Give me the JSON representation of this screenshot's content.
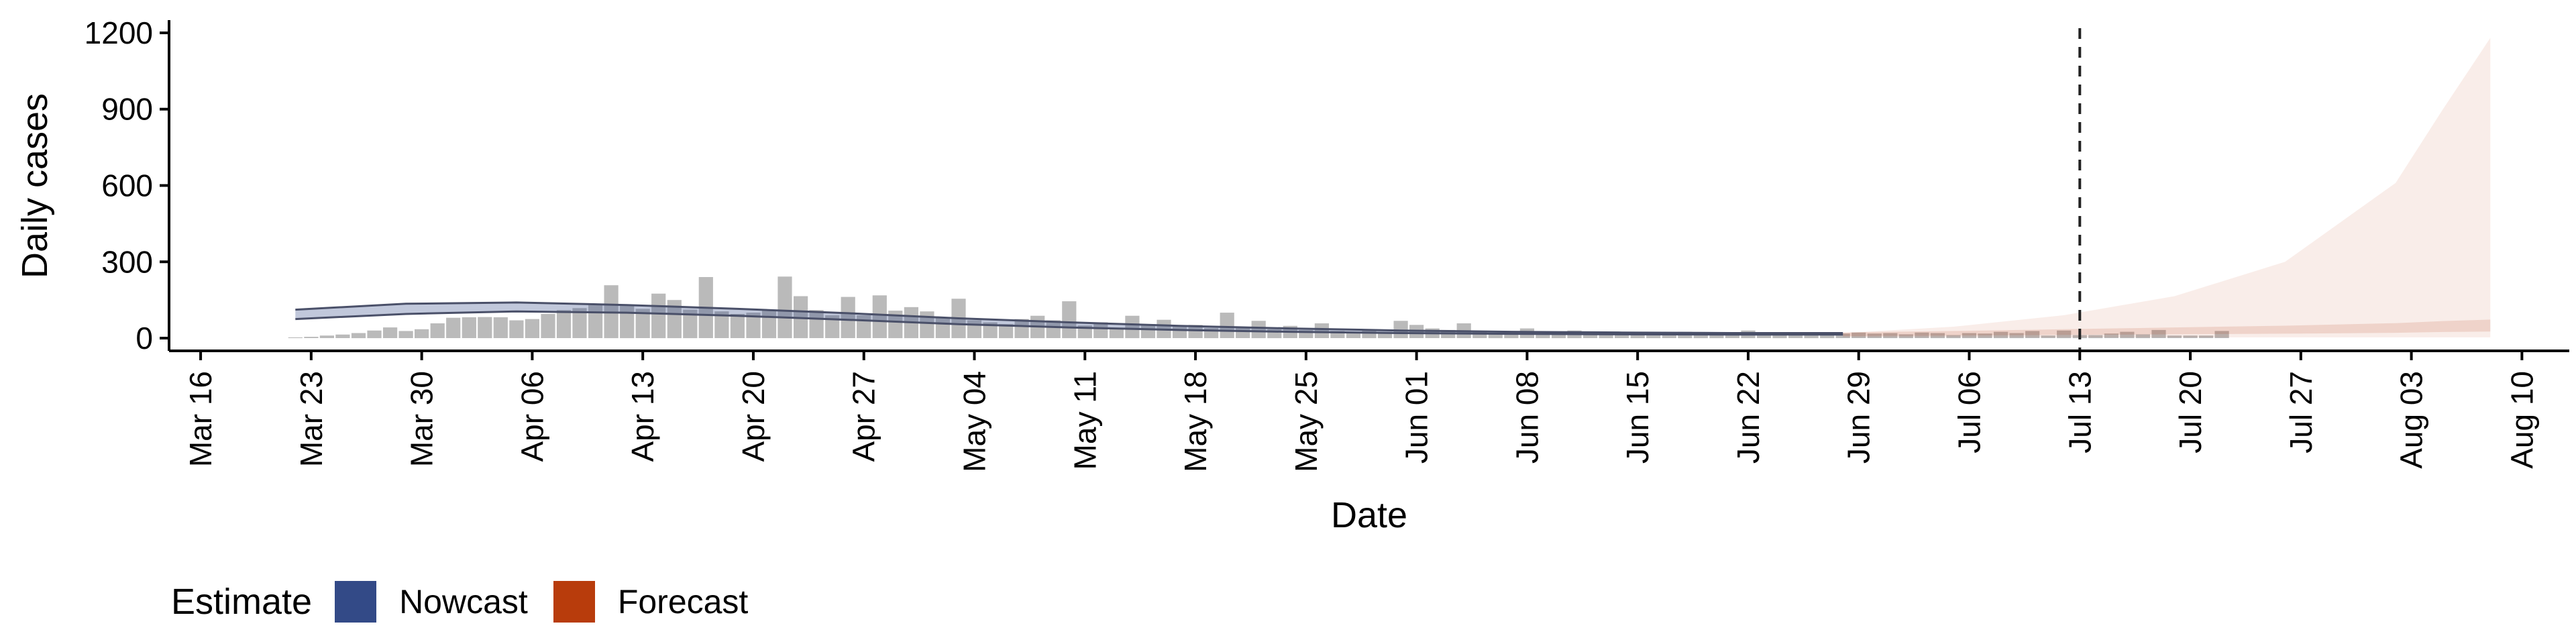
{
  "chart_data": {
    "type": "bar",
    "xlabel": "Date",
    "ylabel": "Daily cases",
    "ylim": [
      -50,
      1250
    ],
    "y_ticks": [
      0,
      300,
      600,
      900,
      1200
    ],
    "x_range": [
      "2020-03-14",
      "2020-08-13"
    ],
    "x_ticks": [
      {
        "date": "2020-03-16",
        "label": "Mar 16"
      },
      {
        "date": "2020-03-23",
        "label": "Mar 23"
      },
      {
        "date": "2020-03-30",
        "label": "Mar 30"
      },
      {
        "date": "2020-04-06",
        "label": "Apr 06"
      },
      {
        "date": "2020-04-13",
        "label": "Apr 13"
      },
      {
        "date": "2020-04-20",
        "label": "Apr 20"
      },
      {
        "date": "2020-04-27",
        "label": "Apr 27"
      },
      {
        "date": "2020-05-04",
        "label": "May 04"
      },
      {
        "date": "2020-05-11",
        "label": "May 11"
      },
      {
        "date": "2020-05-18",
        "label": "May 18"
      },
      {
        "date": "2020-05-25",
        "label": "May 25"
      },
      {
        "date": "2020-06-01",
        "label": "Jun 01"
      },
      {
        "date": "2020-06-08",
        "label": "Jun 08"
      },
      {
        "date": "2020-06-15",
        "label": "Jun 15"
      },
      {
        "date": "2020-06-22",
        "label": "Jun 22"
      },
      {
        "date": "2020-06-29",
        "label": "Jun 29"
      },
      {
        "date": "2020-07-06",
        "label": "Jul 06"
      },
      {
        "date": "2020-07-13",
        "label": "Jul 13"
      },
      {
        "date": "2020-07-20",
        "label": "Jul 20"
      },
      {
        "date": "2020-07-27",
        "label": "Jul 27"
      },
      {
        "date": "2020-08-03",
        "label": "Aug 03"
      },
      {
        "date": "2020-08-10",
        "label": "Aug 10"
      }
    ],
    "observed_start": "2020-03-22",
    "observed_cases": [
      3,
      5,
      10,
      14,
      20,
      30,
      42,
      28,
      35,
      58,
      80,
      82,
      83,
      82,
      70,
      75,
      95,
      110,
      118,
      130,
      208,
      132,
      115,
      175,
      150,
      112,
      240,
      105,
      95,
      100,
      112,
      242,
      165,
      110,
      90,
      162,
      90,
      168,
      108,
      122,
      105,
      82,
      155,
      70,
      62,
      55,
      75,
      88,
      70,
      145,
      50,
      62,
      40,
      88,
      55,
      72,
      48,
      52,
      40,
      100,
      42,
      68,
      35,
      48,
      32,
      58,
      28,
      22,
      30,
      25,
      68,
      52,
      38,
      32,
      58,
      28,
      20,
      25,
      38,
      20,
      25,
      30,
      18,
      15,
      22,
      15,
      15,
      18,
      25,
      12,
      15,
      18,
      30,
      14,
      15,
      18,
      20,
      16,
      18,
      22,
      18,
      20,
      15,
      22,
      20,
      12,
      20,
      18,
      25,
      20,
      28,
      10,
      30,
      12,
      12,
      18,
      25,
      15,
      32,
      10,
      10,
      10,
      28
    ],
    "series": [
      {
        "name": "Nowcast",
        "color": "#334a87",
        "dates": [
          "2020-03-22",
          "2020-03-29",
          "2020-04-05",
          "2020-04-12",
          "2020-04-19",
          "2020-04-26",
          "2020-05-03",
          "2020-05-10",
          "2020-05-17",
          "2020-05-24",
          "2020-05-31",
          "2020-06-07",
          "2020-06-14",
          "2020-06-21",
          "2020-06-28"
        ],
        "lower": [
          75,
          95,
          105,
          100,
          88,
          72,
          55,
          42,
          32,
          25,
          20,
          17,
          15,
          14,
          14
        ],
        "upper": [
          112,
          135,
          140,
          130,
          115,
          98,
          78,
          62,
          48,
          38,
          30,
          25,
          22,
          20,
          20
        ]
      },
      {
        "name": "Forecast",
        "color": "#b83c0c",
        "dates": [
          "2020-06-28",
          "2020-07-05",
          "2020-07-12",
          "2020-07-19",
          "2020-07-26",
          "2020-08-02",
          "2020-08-05",
          "2020-08-08"
        ],
        "lower": [
          3,
          3,
          3,
          3,
          3,
          3,
          3,
          3
        ],
        "upper": [
          20,
          45,
          90,
          165,
          300,
          610,
          900,
          1180
        ],
        "median": [
          16,
          20,
          25,
          30,
          35,
          42,
          48,
          52
        ]
      }
    ],
    "vline_date": "2020-07-13",
    "legend": {
      "title": "Estimate",
      "position": "bottom-left",
      "items": [
        {
          "label": "Nowcast",
          "color": "#334a87"
        },
        {
          "label": "Forecast",
          "color": "#b83c0c"
        }
      ]
    }
  }
}
